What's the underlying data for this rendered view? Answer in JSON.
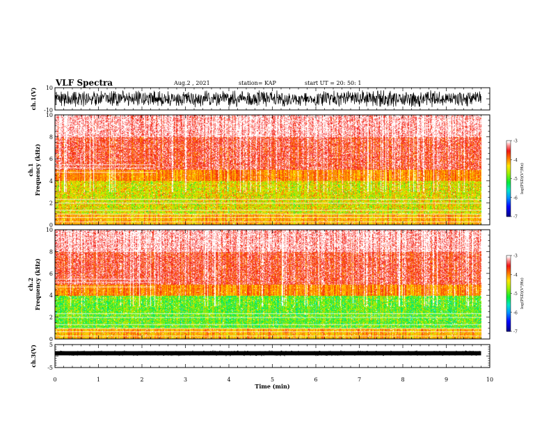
{
  "header": {
    "title": "VLF Spectra",
    "date": "Aug.2 , 2021",
    "station": "station= KAP",
    "start": "start UT = 20: 50: 1"
  },
  "chart_data": [
    {
      "type": "line",
      "title": "",
      "ylabel": "ch.1(V)",
      "xlim": [
        0,
        10
      ],
      "ylim": [
        -10,
        10
      ],
      "yticks": [
        "10",
        "-10"
      ],
      "description_values": "dense waveform spanning roughly -8 to 8 V over 0–9.8 min"
    },
    {
      "type": "heatmap",
      "ylabel": "ch.1\nFrequency (kHz)",
      "ylabel_line1": "ch.1",
      "ylabel_line2": "Frequency (kHz)",
      "xlim": [
        0,
        10
      ],
      "ylim": [
        0,
        10
      ],
      "yticks": [
        "0",
        "2",
        "4",
        "6",
        "8",
        "10"
      ],
      "colorbar": {
        "ticks": [
          "-3",
          "-4",
          "-5",
          "-6",
          "-7"
        ],
        "label": "log(PSD)(V²/Hz)",
        "range": [
          -7,
          -3
        ]
      },
      "data_end_min": 9.8
    },
    {
      "type": "heatmap",
      "ylabel_line1": "ch.2",
      "ylabel_line2": "Frequency (kHz)",
      "xlim": [
        0,
        10
      ],
      "ylim": [
        0,
        10
      ],
      "yticks": [
        "0",
        "2",
        "4",
        "6",
        "8",
        "10"
      ],
      "colorbar": {
        "ticks": [
          "-3",
          "-4",
          "-5",
          "-6",
          "-7"
        ],
        "label": "log(PSD)(V²/Hz)",
        "range": [
          -7,
          -3
        ]
      },
      "data_end_min": 9.8
    },
    {
      "type": "line",
      "ylabel": "ch.3(V)",
      "xlim": [
        0,
        10
      ],
      "ylim": [
        -5,
        5
      ],
      "yticks": [
        "5",
        "-5"
      ],
      "xticks": [
        "0",
        "1",
        "2",
        "3",
        "4",
        "5",
        "6",
        "7",
        "8",
        "9",
        "10"
      ],
      "xlabel": "Time (min)"
    }
  ]
}
